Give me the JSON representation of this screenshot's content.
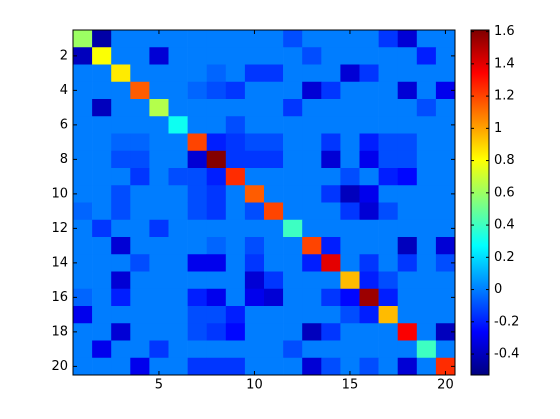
{
  "chart_data": {
    "type": "heatmap",
    "colormap": "jet",
    "clim": [
      -0.53,
      1.61
    ],
    "xlim": [
      0.5,
      20.5
    ],
    "ylim": [
      0.5,
      20.5
    ],
    "xticks": [
      5,
      10,
      15,
      20
    ],
    "yticks": [
      2,
      4,
      6,
      8,
      10,
      12,
      14,
      16,
      18,
      20
    ],
    "colorbar_ticks": [
      -0.4,
      -0.2,
      0,
      0.2,
      0.4,
      0.6,
      0.8,
      1,
      1.2,
      1.4,
      1.6
    ],
    "z": [
      [
        0.6,
        -0.45,
        0,
        0,
        0,
        0,
        0,
        0,
        0,
        0,
        0,
        -0.1,
        0,
        0,
        0,
        0,
        -0.15,
        -0.35,
        0,
        0
      ],
      [
        -0.4,
        0.8,
        0,
        0,
        -0.35,
        0,
        0,
        0,
        0,
        0,
        0,
        0,
        -0.1,
        0,
        0,
        0,
        0,
        0,
        -0.2,
        0
      ],
      [
        0,
        0,
        0.85,
        0,
        0,
        0,
        0,
        -0.05,
        0,
        -0.15,
        -0.15,
        0,
        0,
        0,
        -0.35,
        -0.15,
        0,
        0,
        0,
        0
      ],
      [
        0,
        0,
        0,
        1.15,
        0,
        0,
        -0.05,
        -0.1,
        -0.15,
        0,
        0,
        0,
        -0.35,
        -0.15,
        0,
        0,
        0,
        -0.35,
        0,
        -0.3
      ],
      [
        0,
        -0.4,
        0,
        0,
        0.65,
        0,
        0,
        0,
        0,
        0,
        0,
        -0.15,
        0,
        0,
        0,
        0,
        0,
        0,
        -0.1,
        0
      ],
      [
        0,
        0,
        0,
        0,
        0,
        0.3,
        0,
        0,
        -0.1,
        0,
        0,
        0,
        0,
        0,
        0,
        0,
        0,
        0,
        0,
        0
      ],
      [
        0,
        0,
        -0.05,
        -0.05,
        0,
        0,
        1.2,
        -0.2,
        -0.15,
        -0.1,
        -0.1,
        0,
        0,
        -0.15,
        0,
        -0.2,
        -0.1,
        -0.1,
        0,
        0
      ],
      [
        0,
        0,
        -0.1,
        -0.1,
        0,
        0,
        -0.35,
        1.6,
        -0.15,
        -0.15,
        -0.15,
        0,
        0,
        -0.35,
        0,
        -0.3,
        -0.1,
        -0.1,
        0,
        0
      ],
      [
        0,
        0,
        0,
        -0.15,
        0,
        -0.1,
        -0.1,
        -0.2,
        1.25,
        0,
        0,
        0,
        0,
        0,
        -0.1,
        0,
        -0.2,
        -0.25,
        0,
        0
      ],
      [
        0,
        0,
        -0.1,
        0,
        0,
        0,
        -0.1,
        -0.15,
        0,
        1.15,
        0,
        0,
        0,
        -0.15,
        -0.4,
        -0.3,
        0,
        0,
        0,
        0
      ],
      [
        -0.05,
        0,
        -0.1,
        0,
        0,
        0,
        -0.1,
        -0.15,
        0,
        -0.1,
        1.2,
        0,
        0,
        0,
        -0.15,
        -0.35,
        -0.1,
        0,
        0,
        0
      ],
      [
        0,
        -0.15,
        0,
        0,
        -0.15,
        0,
        0,
        0,
        0,
        0,
        0,
        0.4,
        0,
        0,
        0,
        0,
        0,
        0,
        0,
        0
      ],
      [
        0,
        0,
        -0.35,
        0,
        0,
        0,
        0,
        -0.05,
        0,
        -0.1,
        0,
        0,
        1.2,
        -0.2,
        0,
        0,
        0,
        -0.4,
        0,
        -0.35
      ],
      [
        0,
        0,
        0,
        -0.1,
        0,
        0,
        -0.3,
        -0.3,
        0,
        -0.15,
        0,
        0,
        -0.2,
        1.4,
        0,
        -0.15,
        0,
        -0.15,
        0,
        -0.1
      ],
      [
        0,
        0,
        -0.35,
        0,
        0,
        0,
        0,
        0,
        0,
        -0.35,
        -0.15,
        0,
        0,
        0,
        0.95,
        -0.2,
        -0.1,
        0,
        0,
        0
      ],
      [
        -0.05,
        0,
        -0.2,
        0,
        0,
        0,
        -0.2,
        -0.3,
        0,
        -0.3,
        -0.35,
        0,
        0,
        -0.15,
        -0.25,
        1.55,
        -0.2,
        0,
        0,
        0
      ],
      [
        -0.3,
        0,
        0,
        0,
        0,
        0,
        -0.1,
        -0.1,
        -0.2,
        0,
        0,
        0,
        0,
        0,
        -0.1,
        -0.2,
        0.95,
        0,
        0,
        0
      ],
      [
        0,
        0,
        -0.35,
        0,
        0,
        0,
        -0.1,
        -0.15,
        -0.25,
        0,
        0,
        0,
        -0.4,
        -0.15,
        0,
        0,
        0,
        1.35,
        0,
        -0.4
      ],
      [
        0,
        -0.3,
        0,
        0,
        -0.15,
        0,
        0,
        0,
        0,
        0,
        0,
        -0.1,
        0,
        0,
        0,
        0,
        0,
        0,
        0.4,
        0
      ],
      [
        0,
        0,
        0,
        -0.3,
        0,
        0,
        -0.15,
        -0.15,
        -0.15,
        0,
        0,
        0,
        -0.35,
        -0.1,
        0,
        -0.1,
        0,
        -0.35,
        0,
        1.25
      ]
    ]
  }
}
